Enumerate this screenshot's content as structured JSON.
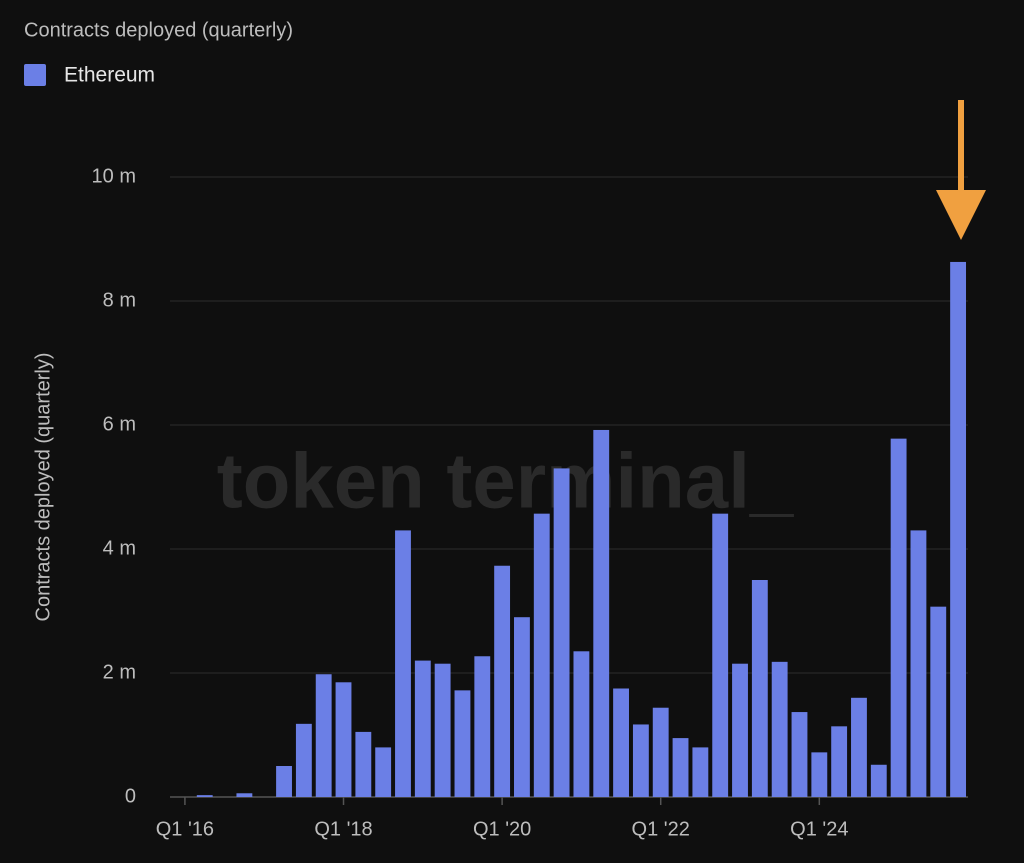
{
  "chart_data": {
    "type": "bar",
    "title": "Contracts deployed (quarterly)",
    "y_label": "Contracts deployed (quarterly)",
    "watermark": "token terminal_",
    "legend": "top-left",
    "grid": true,
    "categories": [
      "Q1 '16",
      null,
      null,
      null,
      null,
      null,
      null,
      null,
      "Q1 '18",
      null,
      null,
      null,
      null,
      null,
      null,
      null,
      "Q1 '20",
      null,
      null,
      null,
      null,
      null,
      null,
      null,
      "Q1 '22",
      null,
      null,
      null,
      null,
      null,
      null,
      null,
      "Q1 '24",
      null,
      null,
      null,
      null,
      null,
      null,
      null
    ],
    "series": [
      {
        "name": "Ethereum",
        "color": "#6b7fe6",
        "values": [
          0,
          0.03,
          0,
          0.06,
          0,
          0.5,
          1.18,
          1.98,
          1.85,
          1.05,
          0.8,
          4.3,
          2.2,
          2.15,
          1.72,
          2.27,
          3.73,
          2.9,
          4.57,
          5.3,
          2.35,
          5.92,
          1.75,
          1.17,
          1.44,
          0.95,
          0.8,
          4.57,
          2.15,
          3.5,
          2.18,
          1.37,
          0.72,
          1.14,
          1.6,
          0.52,
          5.78,
          4.3,
          3.07,
          8.63
        ]
      }
    ],
    "ylim": [
      0,
      10
    ],
    "yticks": [
      0,
      {
        "value": 2,
        "label": "2 m"
      },
      {
        "value": 4,
        "label": "4 m"
      },
      {
        "value": 6,
        "label": "6 m"
      },
      {
        "value": 8,
        "label": "8 m"
      },
      {
        "value": 10,
        "label": "10 m"
      }
    ]
  }
}
